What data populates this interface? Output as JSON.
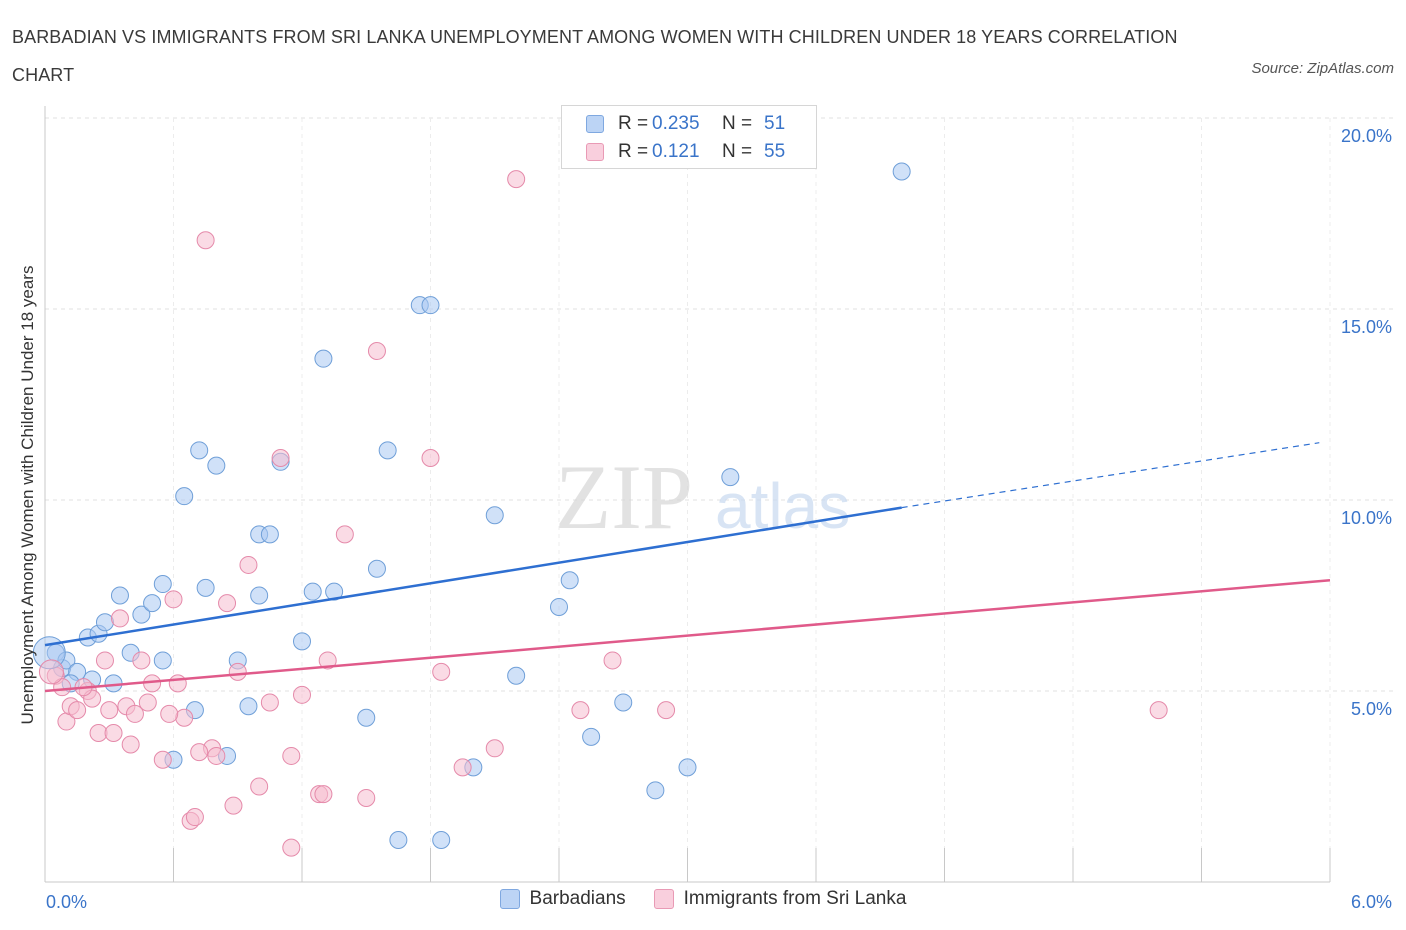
{
  "title": "BARBADIAN VS IMMIGRANTS FROM SRI LANKA UNEMPLOYMENT AMONG WOMEN WITH CHILDREN UNDER 18 YEARS CORRELATION CHART",
  "source": "Source: ZipAtlas.com",
  "watermark": {
    "zip": "ZIP",
    "atlas": "atlas"
  },
  "legend": {
    "rows": [
      {
        "r_label": "R =",
        "r_value": "0.235",
        "n_label": "N =",
        "n_value": "51",
        "color": "#a9c8f2"
      },
      {
        "r_label": "R =",
        "r_value": "0.121",
        "n_label": "N =",
        "n_value": "55",
        "color": "#f6bdd0"
      }
    ]
  },
  "bottom_legend": [
    "Barbadians",
    "Immigrants from Sri Lanka"
  ],
  "chart_data": {
    "type": "scatter",
    "title": "BARBADIAN VS IMMIGRANTS FROM SRI LANKA UNEMPLOYMENT AMONG WOMEN WITH CHILDREN UNDER 18 YEARS CORRELATION CHART",
    "xlabel": "",
    "ylabel": "Unemployment Among Women with Children Under 18 years",
    "xlim": [
      0,
      6
    ],
    "ylim": [
      0,
      20
    ],
    "x_tick_labels": [
      "0.0%",
      "6.0%"
    ],
    "y_ticks": [
      5,
      10,
      15,
      20
    ],
    "y_tick_labels": [
      "5.0%",
      "10.0%",
      "15.0%",
      "20.0%"
    ],
    "grid": true,
    "legend_position": "top-center",
    "series": [
      {
        "name": "Barbadians",
        "color": "#a9c8f2",
        "stroke": "#6f9fd8",
        "line_color": "#2e6fd1",
        "trend": {
          "x": [
            0,
            4.0
          ],
          "y": [
            6.2,
            9.8
          ],
          "dashed_to": [
            5.95,
            11.5
          ]
        },
        "points": [
          [
            0.05,
            6.0
          ],
          [
            0.08,
            5.6
          ],
          [
            0.1,
            5.8
          ],
          [
            0.15,
            5.5
          ],
          [
            0.2,
            6.4
          ],
          [
            0.25,
            6.5
          ],
          [
            0.28,
            6.8
          ],
          [
            0.32,
            5.2
          ],
          [
            0.35,
            7.5
          ],
          [
            0.45,
            7.0
          ],
          [
            0.5,
            7.3
          ],
          [
            0.55,
            5.8
          ],
          [
            0.6,
            3.2
          ],
          [
            0.65,
            10.1
          ],
          [
            0.72,
            11.3
          ],
          [
            0.75,
            7.7
          ],
          [
            0.8,
            10.9
          ],
          [
            0.85,
            3.3
          ],
          [
            0.9,
            5.8
          ],
          [
            0.95,
            4.6
          ],
          [
            1.0,
            9.1
          ],
          [
            1.05,
            9.1
          ],
          [
            1.1,
            11.0
          ],
          [
            1.2,
            6.3
          ],
          [
            1.25,
            7.6
          ],
          [
            1.3,
            13.7
          ],
          [
            1.35,
            7.6
          ],
          [
            1.5,
            4.3
          ],
          [
            1.55,
            8.2
          ],
          [
            1.6,
            11.3
          ],
          [
            1.65,
            1.1
          ],
          [
            1.75,
            15.1
          ],
          [
            1.8,
            15.1
          ],
          [
            1.85,
            1.1
          ],
          [
            2.0,
            3.0
          ],
          [
            2.1,
            9.6
          ],
          [
            2.2,
            5.4
          ],
          [
            2.4,
            7.2
          ],
          [
            2.45,
            7.9
          ],
          [
            2.55,
            3.8
          ],
          [
            2.7,
            4.7
          ],
          [
            2.85,
            2.4
          ],
          [
            3.0,
            3.0
          ],
          [
            3.2,
            10.6
          ],
          [
            4.0,
            18.6
          ],
          [
            0.12,
            5.2
          ],
          [
            0.4,
            6.0
          ],
          [
            0.7,
            4.5
          ],
          [
            0.22,
            5.3
          ],
          [
            0.55,
            7.8
          ],
          [
            1.0,
            7.5
          ]
        ]
      },
      {
        "name": "Immigrants from Sri Lanka",
        "color": "#f6bdd0",
        "stroke": "#e58aaa",
        "line_color": "#e05a8a",
        "trend": {
          "x": [
            0,
            6.0
          ],
          "y": [
            5.0,
            7.9
          ]
        },
        "points": [
          [
            0.05,
            5.4
          ],
          [
            0.08,
            5.1
          ],
          [
            0.1,
            4.2
          ],
          [
            0.12,
            4.6
          ],
          [
            0.15,
            4.5
          ],
          [
            0.2,
            5.0
          ],
          [
            0.22,
            4.8
          ],
          [
            0.25,
            3.9
          ],
          [
            0.28,
            5.8
          ],
          [
            0.3,
            4.5
          ],
          [
            0.32,
            3.9
          ],
          [
            0.38,
            4.6
          ],
          [
            0.42,
            4.4
          ],
          [
            0.45,
            5.8
          ],
          [
            0.5,
            5.2
          ],
          [
            0.55,
            3.2
          ],
          [
            0.6,
            7.4
          ],
          [
            0.62,
            5.2
          ],
          [
            0.65,
            4.3
          ],
          [
            0.68,
            1.6
          ],
          [
            0.7,
            1.7
          ],
          [
            0.75,
            16.8
          ],
          [
            0.78,
            3.5
          ],
          [
            0.8,
            3.3
          ],
          [
            0.85,
            7.3
          ],
          [
            0.88,
            2.0
          ],
          [
            0.9,
            5.5
          ],
          [
            0.95,
            8.3
          ],
          [
            1.0,
            2.5
          ],
          [
            1.05,
            4.7
          ],
          [
            1.1,
            11.1
          ],
          [
            1.15,
            3.3
          ],
          [
            1.2,
            4.9
          ],
          [
            1.28,
            2.3
          ],
          [
            1.3,
            2.3
          ],
          [
            1.32,
            5.8
          ],
          [
            1.4,
            9.1
          ],
          [
            1.5,
            2.2
          ],
          [
            1.55,
            13.9
          ],
          [
            1.8,
            11.1
          ],
          [
            1.85,
            5.5
          ],
          [
            1.95,
            3.0
          ],
          [
            2.1,
            3.5
          ],
          [
            2.2,
            18.4
          ],
          [
            2.5,
            4.5
          ],
          [
            2.65,
            5.8
          ],
          [
            2.9,
            4.5
          ],
          [
            5.2,
            4.5
          ],
          [
            0.35,
            6.9
          ],
          [
            0.58,
            4.4
          ],
          [
            0.48,
            4.7
          ],
          [
            1.15,
            0.9
          ],
          [
            0.18,
            5.1
          ],
          [
            0.72,
            3.4
          ],
          [
            0.4,
            3.6
          ]
        ]
      }
    ]
  }
}
